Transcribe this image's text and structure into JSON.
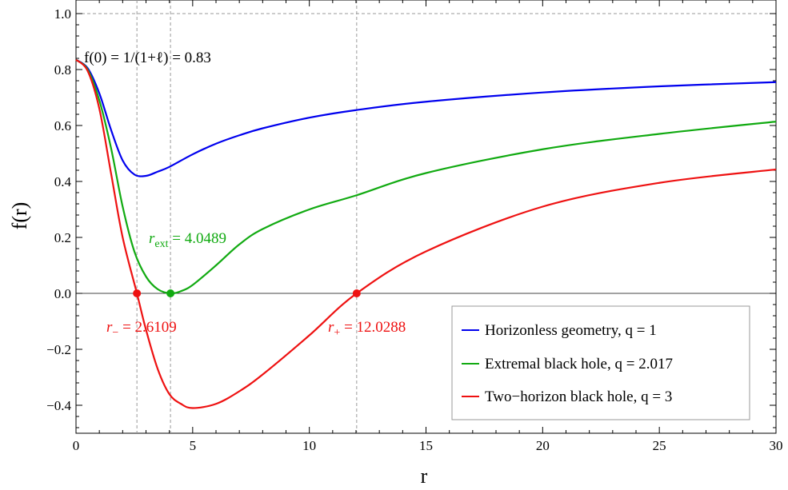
{
  "chart_data": {
    "type": "line",
    "xlabel": "r",
    "ylabel": "f(r)",
    "xlim": [
      0,
      30
    ],
    "ylim": [
      -0.5,
      1.0
    ],
    "x_ticks": [
      0,
      5,
      10,
      15,
      20,
      25,
      30
    ],
    "x_tick_labels": [
      "0",
      "5",
      "10",
      "15",
      "20",
      "25",
      "30"
    ],
    "y_ticks": [
      -0.4,
      -0.2,
      0.0,
      0.2,
      0.4,
      0.6,
      0.8,
      1.0
    ],
    "y_tick_labels": [
      "−0.4",
      "−0.2",
      "0.0",
      "0.2",
      "0.4",
      "0.6",
      "0.8",
      "1.0"
    ],
    "grid": false,
    "reference_lines": {
      "horizontal": [
        {
          "y": 1.0,
          "style": "dashed"
        },
        {
          "y": 0.0,
          "style": "solid"
        }
      ],
      "vertical": [
        {
          "x": 2.6109,
          "style": "dashed"
        },
        {
          "x": 4.0489,
          "style": "dashed"
        },
        {
          "x": 12.0288,
          "style": "dashed"
        }
      ]
    },
    "series": [
      {
        "name": "Horizonless geometry,  q = 1",
        "color": "#0000ee",
        "x": [
          0,
          0.5,
          1.0,
          1.5,
          2.0,
          2.5,
          3.0,
          3.5,
          4.0,
          5.0,
          6.0,
          7.0,
          8.0,
          10.0,
          12.0,
          15.0,
          20.0,
          25.0,
          30.0
        ],
        "y": [
          0.835,
          0.805,
          0.715,
          0.585,
          0.475,
          0.425,
          0.42,
          0.435,
          0.452,
          0.497,
          0.535,
          0.565,
          0.59,
          0.628,
          0.655,
          0.685,
          0.718,
          0.74,
          0.755
        ]
      },
      {
        "name": "Extremal black hole,  q = 2.017",
        "color": "#11aa11",
        "x": [
          0,
          0.5,
          1.0,
          1.5,
          2.0,
          2.5,
          3.0,
          3.5,
          4.0489,
          4.5,
          5.0,
          6.0,
          7.0,
          8.0,
          10.0,
          12.0,
          15.0,
          20.0,
          25.0,
          30.0
        ],
        "y": [
          0.835,
          0.8,
          0.69,
          0.52,
          0.31,
          0.15,
          0.06,
          0.015,
          0.0,
          0.008,
          0.03,
          0.1,
          0.175,
          0.23,
          0.3,
          0.35,
          0.43,
          0.515,
          0.57,
          0.614
        ]
      },
      {
        "name": "Two−horizon black hole,  q = 3",
        "color": "#ee1111",
        "x": [
          0,
          0.5,
          1.0,
          1.5,
          2.0,
          2.6109,
          3.0,
          3.5,
          4.0,
          4.5,
          5.0,
          6.0,
          7.0,
          8.0,
          10.0,
          12.0288,
          15.0,
          20.0,
          25.0,
          30.0
        ],
        "y": [
          0.835,
          0.795,
          0.66,
          0.43,
          0.2,
          0.0,
          -0.13,
          -0.27,
          -0.36,
          -0.395,
          -0.41,
          -0.395,
          -0.35,
          -0.29,
          -0.15,
          0.0,
          0.15,
          0.31,
          0.395,
          0.443
        ]
      }
    ],
    "points": [
      {
        "x": 2.6109,
        "y": 0.0,
        "color": "#ee1111"
      },
      {
        "x": 4.0489,
        "y": 0.0,
        "color": "#11aa11"
      },
      {
        "x": 12.0288,
        "y": 0.0,
        "color": "#ee1111"
      }
    ],
    "annotations": [
      {
        "text": "f(0) = 1/(1+ℓ) = 0.83",
        "color": "#000000"
      },
      {
        "text_main": "r",
        "text_sub": "ext",
        "text_rest": " = 4.0489",
        "color": "#11aa11"
      },
      {
        "text_main": "r",
        "text_sub": "−",
        "text_rest": " = 2.6109",
        "color": "#ee1111"
      },
      {
        "text_main": "r",
        "text_sub": "+",
        "text_rest": " = 12.0288",
        "color": "#ee1111"
      }
    ],
    "legend_position": "bottom-right"
  }
}
